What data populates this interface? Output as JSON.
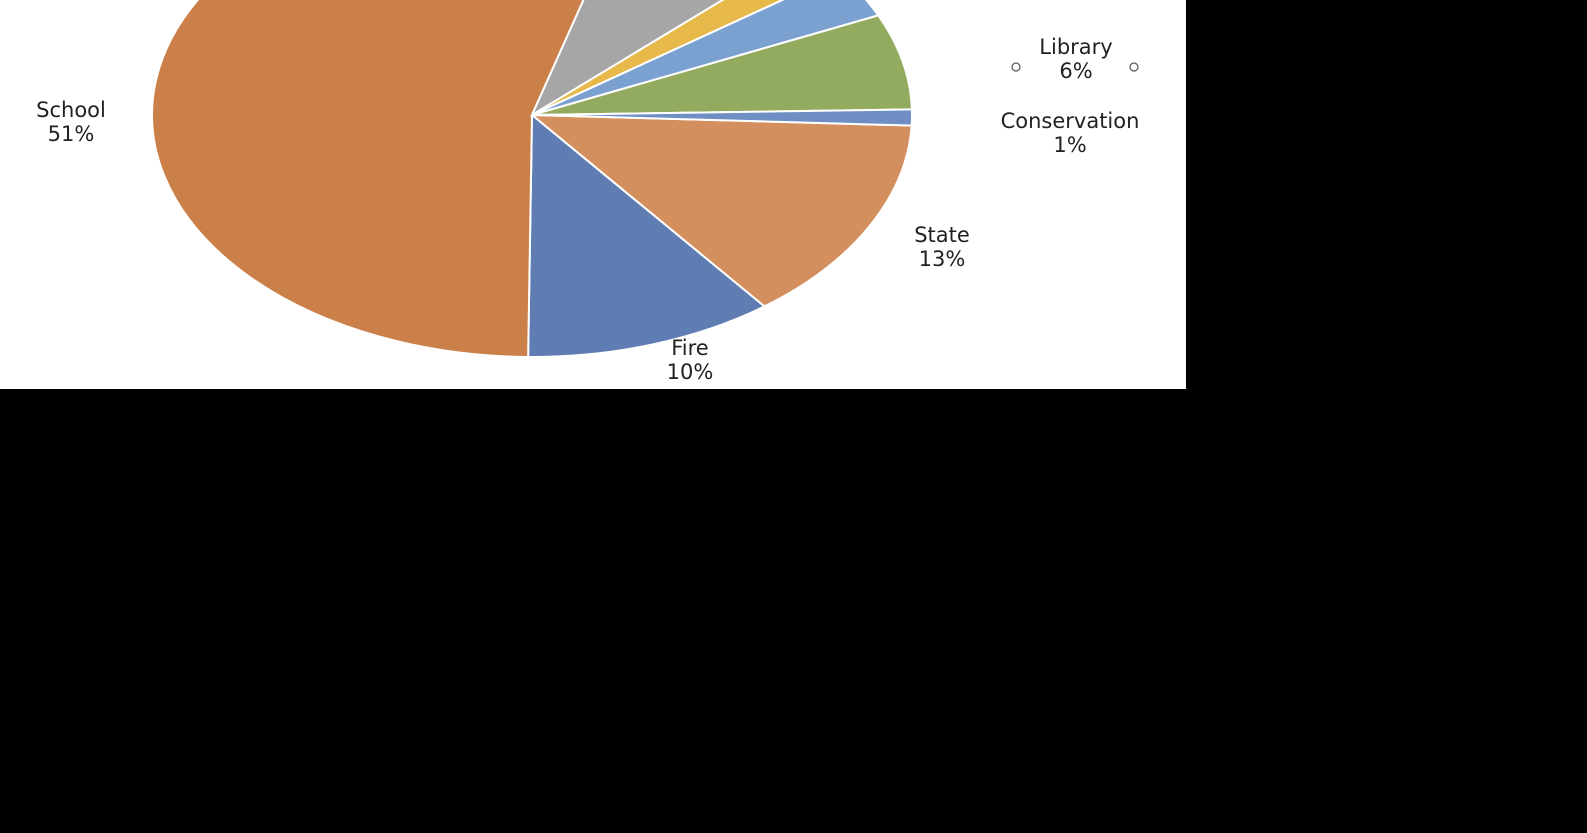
{
  "chart_data": {
    "type": "pie",
    "slices": [
      {
        "label": "State",
        "value": 13,
        "percent_text": "13%",
        "color": "#D48F5F"
      },
      {
        "label": "Fire",
        "value": 10,
        "percent_text": "10%",
        "color": "#5F7DB3"
      },
      {
        "label": "School",
        "value": 51,
        "percent_text": "51%",
        "color": "#CC8049"
      },
      {
        "label": "",
        "value": 8,
        "percent_text": "",
        "color": "#A6A6A6"
      },
      {
        "label": "",
        "value": 2,
        "percent_text": "",
        "color": "#E6B94A"
      },
      {
        "label": "",
        "value": 3,
        "percent_text": "3%",
        "color": "#7BA1D1"
      },
      {
        "label": "Library",
        "value": 6,
        "percent_text": "6%",
        "color": "#93AB5F"
      },
      {
        "label": "Conservation",
        "value": 1,
        "percent_text": "1%",
        "color": "#6E8EC4"
      }
    ],
    "legend": "none",
    "data_labels": "category-and-percent"
  }
}
